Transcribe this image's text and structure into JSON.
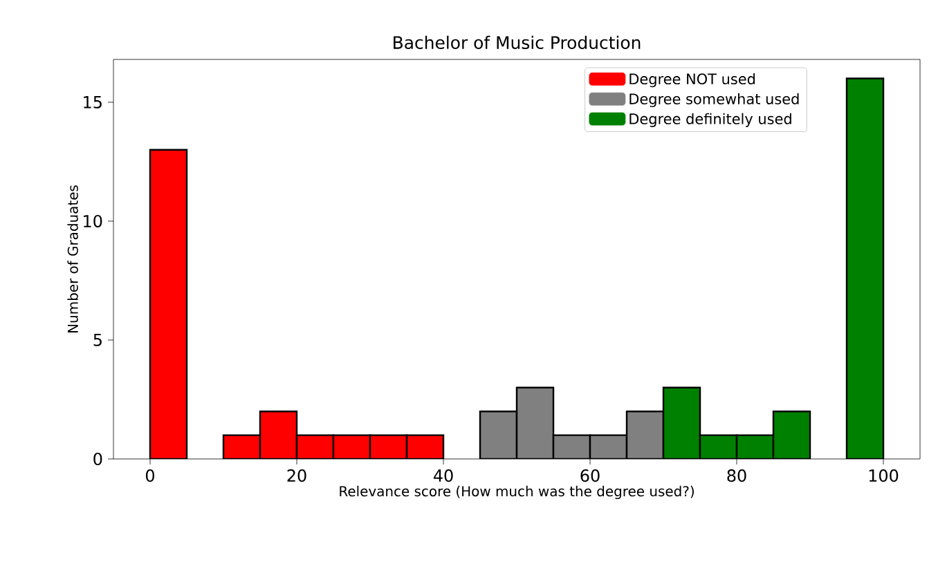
{
  "chart_data": {
    "type": "histogram",
    "title": "Bachelor of Music Production",
    "xlabel": "Relevance score (How much was the degree used?)",
    "ylabel": "Number of Graduates",
    "bins": [
      0,
      5,
      10,
      15,
      20,
      25,
      30,
      35,
      40,
      45,
      50,
      55,
      60,
      65,
      70,
      75,
      80,
      85,
      90,
      95,
      100
    ],
    "series": [
      {
        "name": "Degree NOT used",
        "color": "#ff0000",
        "values": [
          13,
          0,
          1,
          2,
          1,
          1,
          1,
          1,
          null,
          null,
          null,
          null,
          null,
          null,
          null,
          null,
          null,
          null,
          null,
          null
        ]
      },
      {
        "name": "Degree somewhat used",
        "color": "#808080",
        "values": [
          null,
          null,
          null,
          null,
          null,
          null,
          null,
          null,
          0,
          2,
          3,
          1,
          1,
          2,
          null,
          null,
          null,
          null,
          null,
          null
        ]
      },
      {
        "name": "Degree definitely used",
        "color": "#008000",
        "values": [
          null,
          null,
          null,
          null,
          null,
          null,
          null,
          null,
          null,
          null,
          null,
          null,
          null,
          null,
          3,
          1,
          1,
          2,
          0,
          16
        ]
      }
    ],
    "xlim": [
      -5,
      105
    ],
    "ylim": [
      0,
      16.8
    ],
    "xticks": [
      0,
      20,
      40,
      60,
      80,
      100
    ],
    "yticks": [
      0,
      5,
      10,
      15
    ],
    "legend": "top right"
  }
}
